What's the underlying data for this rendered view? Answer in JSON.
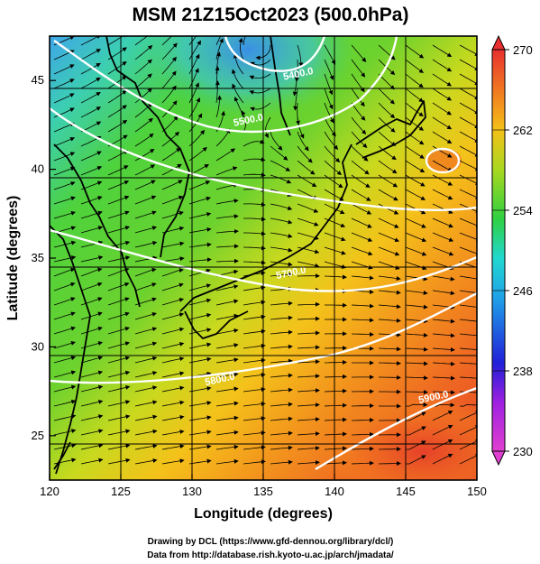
{
  "title": "MSM 21Z15Oct2023 (500.0hPa)",
  "xlabel": "Longitude (degrees)",
  "ylabel": "Latitude  (degrees)",
  "credit": {
    "line1": "Drawing by DCL (https://www.gfd-dennou.org/library/dcl/)",
    "line2": "Data from http://database.rish.kyoto-u.ac.jp/arch/jmadata/"
  },
  "map": {
    "lon_range": [
      120,
      150
    ],
    "lat_range": [
      22.5,
      47.5
    ],
    "x_ticks": [
      {
        "value": 120,
        "label": "120"
      },
      {
        "value": 125,
        "label": "125"
      },
      {
        "value": 130,
        "label": "130"
      },
      {
        "value": 135,
        "label": "135"
      },
      {
        "value": 140,
        "label": "140"
      },
      {
        "value": 145,
        "label": "145"
      },
      {
        "value": 150,
        "label": "150"
      }
    ],
    "y_ticks": [
      {
        "value": 25,
        "label": "25"
      },
      {
        "value": 30,
        "label": "30"
      },
      {
        "value": 35,
        "label": "35"
      },
      {
        "value": 40,
        "label": "40"
      },
      {
        "value": 45,
        "label": "45"
      }
    ],
    "contour_labels": [
      {
        "text": "5400.0",
        "lon": 137.5,
        "lat": 45.2
      },
      {
        "text": "5500.0",
        "lon": 134.0,
        "lat": 42.6
      },
      {
        "text": "5700.0",
        "lon": 137.0,
        "lat": 34.0
      },
      {
        "text": "5800.0",
        "lon": 132.0,
        "lat": 28.0
      },
      {
        "text": "5900.0",
        "lon": 147.0,
        "lat": 27.0
      }
    ]
  },
  "colorbar": {
    "min": 230,
    "max": 270,
    "ticks": [
      {
        "value": 270,
        "label": "270"
      },
      {
        "value": 262,
        "label": "262"
      },
      {
        "value": 254,
        "label": "254"
      },
      {
        "value": 246,
        "label": "246"
      },
      {
        "value": 238,
        "label": "238"
      },
      {
        "value": 230,
        "label": "230"
      }
    ]
  },
  "colors": {
    "cold": "#2f8fe6",
    "mid": "#36c23a",
    "warm": "#f08a1c",
    "hot": "#e83a2c"
  }
}
